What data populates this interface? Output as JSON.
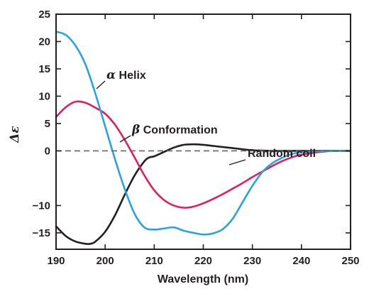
{
  "chart_data": {
    "type": "line",
    "title": "",
    "xlabel": "Wavelength (nm)",
    "ylabel": "Δε",
    "xlim": [
      190,
      250
    ],
    "ylim": [
      -18,
      25
    ],
    "xticks": [
      190,
      200,
      210,
      220,
      230,
      240,
      250
    ],
    "yticks": [
      25,
      20,
      15,
      10,
      5,
      0,
      -10,
      -15
    ],
    "xtick_labels": [
      "190",
      "200",
      "210",
      "220",
      "230",
      "240",
      "250"
    ],
    "ytick_labels": [
      "25",
      "20",
      "15",
      "10",
      "5",
      "0",
      "−10",
      "−15"
    ],
    "grid": false,
    "reference_line": {
      "y": 0,
      "style": "dashed"
    },
    "series": [
      {
        "name": "Helix",
        "greek": "α",
        "color": "#29a3e0",
        "x": [
          190,
          192,
          194,
          196,
          198,
          200,
          202,
          204,
          206,
          208,
          210,
          212,
          214,
          216,
          218,
          220,
          222,
          224,
          226,
          228,
          230,
          232,
          234,
          236,
          238,
          240,
          245,
          250
        ],
        "y": [
          21.8,
          21.2,
          19.2,
          15.8,
          10.5,
          4.5,
          -1.5,
          -7.0,
          -11.5,
          -14.0,
          -14.4,
          -14.2,
          -14.0,
          -14.6,
          -15.0,
          -15.3,
          -15.1,
          -14.3,
          -12.4,
          -9.4,
          -6.4,
          -3.9,
          -2.3,
          -1.3,
          -0.6,
          -0.25,
          -0.05,
          0
        ]
      },
      {
        "name": "Conformation",
        "greek": "β",
        "color": "#e31d5c",
        "x": [
          190,
          192,
          194,
          196,
          198,
          200,
          202,
          204,
          206,
          208,
          210,
          212,
          214,
          216,
          218,
          220,
          222,
          224,
          226,
          228,
          230,
          232,
          234,
          236,
          238,
          240,
          245,
          250
        ],
        "y": [
          6.2,
          8.0,
          9.0,
          8.8,
          7.9,
          6.8,
          4.8,
          2.0,
          -1.2,
          -4.5,
          -7.2,
          -9.0,
          -10.0,
          -10.4,
          -10.2,
          -9.6,
          -8.8,
          -7.9,
          -6.9,
          -5.9,
          -4.8,
          -3.8,
          -2.8,
          -1.9,
          -1.2,
          -0.7,
          -0.1,
          0
        ]
      },
      {
        "name": "Random coil",
        "greek": "",
        "color": "#231f20",
        "x": [
          190,
          192,
          194,
          196,
          197,
          198,
          200,
          202,
          204,
          206,
          208,
          209,
          210,
          212,
          214,
          216,
          218,
          220,
          222,
          224,
          226,
          228,
          230,
          232,
          234,
          236,
          240,
          245,
          250
        ],
        "y": [
          -13.8,
          -15.6,
          -16.6,
          -17.0,
          -17.0,
          -16.6,
          -14.8,
          -11.8,
          -8.0,
          -4.5,
          -1.9,
          -1.2,
          -1.0,
          -0.2,
          0.6,
          1.1,
          1.2,
          1.1,
          0.9,
          0.7,
          0.5,
          0.3,
          0.1,
          0.05,
          0,
          0,
          0,
          0,
          0
        ]
      }
    ],
    "annotations": [
      {
        "greek": "α",
        "text": "Helix",
        "series": 0,
        "at_x": 194.2,
        "at_y": 8.6
      },
      {
        "greek": "β",
        "text": "Conformation",
        "series": 1,
        "at_x": 201.3,
        "at_y": 6.3
      },
      {
        "greek": "",
        "text": "Random coil",
        "series": 2,
        "at_x": 219.8,
        "at_y": 1.2
      }
    ]
  }
}
